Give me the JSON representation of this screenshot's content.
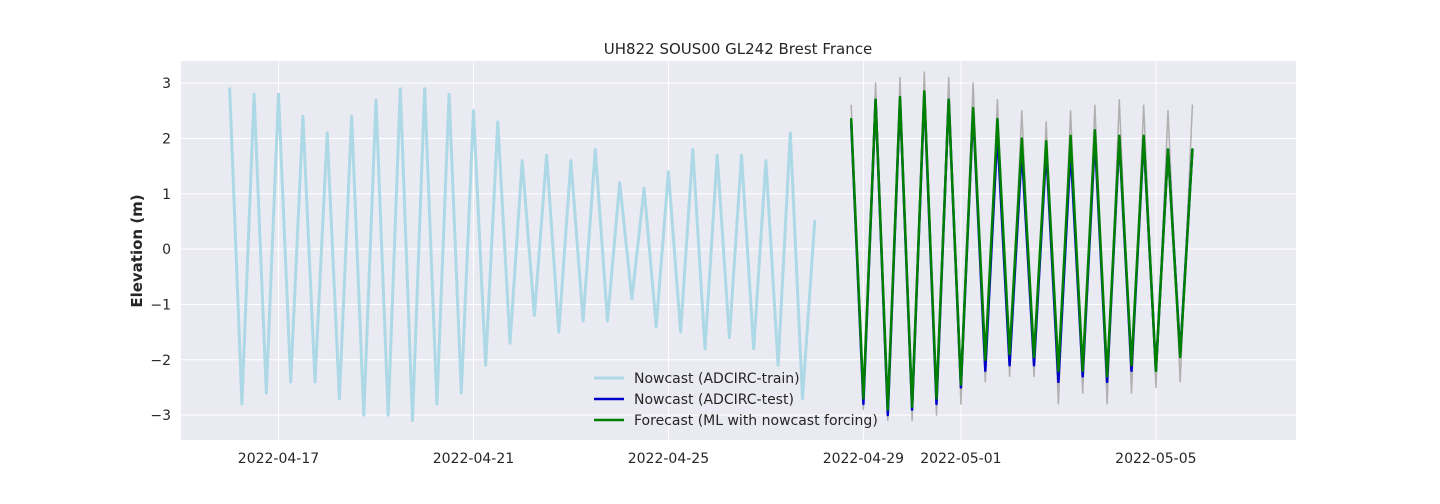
{
  "chart_data": {
    "type": "line",
    "title": "UH822 SOUS00 GL242 Brest France",
    "xlabel": "",
    "ylabel": "Elevation (m)",
    "xlim": [
      "2022-04-15T00:00",
      "2022-05-07T21:00"
    ],
    "ylim": [
      -3.45,
      3.4
    ],
    "x_ticks": [
      "2022-04-17",
      "2022-04-21",
      "2022-04-25",
      "2022-04-29",
      "2022-05-01",
      "2022-05-05"
    ],
    "y_ticks": [
      -3,
      -2,
      -1,
      0,
      1,
      2,
      3
    ],
    "grid": true,
    "legend_placement": "lower-center",
    "series": [
      {
        "name": "Nowcast (ADCIRC-train)",
        "color": "#add8e6",
        "legend": true,
        "x_start": "2022-04-16T00:00",
        "step_hours": 6,
        "values": [
          2.9,
          -2.8,
          2.8,
          -2.6,
          2.8,
          -2.4,
          2.4,
          -2.4,
          2.1,
          -2.7,
          2.4,
          -3.0,
          2.7,
          -3.0,
          2.9,
          -3.1,
          2.9,
          -2.8,
          2.8,
          -2.6,
          2.5,
          -2.1,
          2.3,
          -1.7,
          1.6,
          -1.2,
          1.7,
          -1.5,
          1.6,
          -1.3,
          1.8,
          -1.3,
          1.2,
          -0.9,
          1.1,
          -1.4,
          1.4,
          -1.5,
          1.8,
          -1.8,
          1.7,
          -1.6,
          1.7,
          -1.8,
          1.6,
          -2.1,
          2.1,
          -2.7,
          0.5
        ]
      },
      {
        "name": "",
        "color": "#b0b0b0",
        "legend": false,
        "x_start": "2022-04-28T18:00",
        "step_hours": 6,
        "values": [
          2.6,
          -2.9,
          3.0,
          -3.1,
          3.1,
          -3.1,
          3.2,
          -3.0,
          3.1,
          -2.8,
          3.0,
          -2.4,
          2.7,
          -2.3,
          2.5,
          -2.3,
          2.3,
          -2.8,
          2.5,
          -2.6,
          2.6,
          -2.8,
          2.7,
          -2.6,
          2.6,
          -2.5,
          2.5,
          -2.4,
          2.6
        ]
      },
      {
        "name": "Nowcast (ADCIRC-test)",
        "color": "#0000cd",
        "legend": true,
        "x_start": "2022-04-28T18:00",
        "step_hours": 6,
        "values": [
          2.3,
          -2.8,
          2.7,
          -3.0,
          2.7,
          -2.9,
          2.8,
          -2.8,
          2.7,
          -2.5,
          2.5,
          -2.2,
          2.1,
          -2.1,
          1.8,
          -2.1,
          1.8,
          -2.4,
          1.8,
          -2.3,
          2.0,
          -2.4,
          2.0,
          -2.2,
          2.0,
          -2.2,
          1.8,
          -1.9,
          1.8
        ]
      },
      {
        "name": "Forecast (ML with nowcast forcing)",
        "color": "#008000",
        "legend": true,
        "x_start": "2022-04-28T18:00",
        "step_hours": 6,
        "values": [
          2.35,
          -2.7,
          2.7,
          -2.9,
          2.75,
          -2.85,
          2.85,
          -2.7,
          2.7,
          -2.45,
          2.55,
          -2.0,
          2.35,
          -1.9,
          2.0,
          -1.95,
          1.95,
          -2.2,
          2.05,
          -2.2,
          2.15,
          -2.3,
          2.05,
          -2.1,
          2.05,
          -2.2,
          1.8,
          -1.95,
          1.8
        ]
      }
    ]
  }
}
